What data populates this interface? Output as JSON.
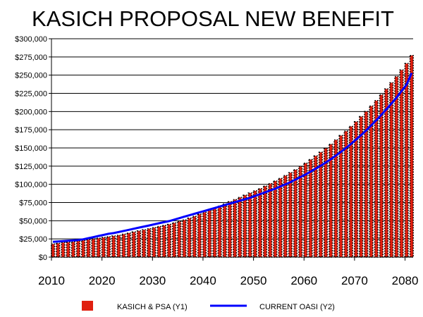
{
  "chart_data": {
    "type": "bar",
    "title": "KASICH PROPOSAL NEW BENEFIT",
    "xlabel": "",
    "ylabel": "",
    "ylim": [
      0,
      300000
    ],
    "xlim": [
      2010,
      2081
    ],
    "y_ticks": [
      "$0",
      "$25,000",
      "$50,000",
      "$75,000",
      "$100,000",
      "$125,000",
      "$150,000",
      "$175,000",
      "$200,000",
      "$225,000",
      "$250,000",
      "$275,000",
      "$300,000"
    ],
    "x_ticks": [
      "2010",
      "2020",
      "2030",
      "2040",
      "2050",
      "2060",
      "2070",
      "2080"
    ],
    "grid": true,
    "legend_position": "bottom",
    "colors": {
      "bars": "#e02010",
      "bar_dots": "#000000",
      "line": "#0000ff",
      "grid": "#000000"
    },
    "x": [
      2010,
      2011,
      2012,
      2013,
      2014,
      2015,
      2016,
      2017,
      2018,
      2019,
      2020,
      2021,
      2022,
      2023,
      2024,
      2025,
      2026,
      2027,
      2028,
      2029,
      2030,
      2031,
      2032,
      2033,
      2034,
      2035,
      2036,
      2037,
      2038,
      2039,
      2040,
      2041,
      2042,
      2043,
      2044,
      2045,
      2046,
      2047,
      2048,
      2049,
      2050,
      2051,
      2052,
      2053,
      2054,
      2055,
      2056,
      2057,
      2058,
      2059,
      2060,
      2061,
      2062,
      2063,
      2064,
      2065,
      2066,
      2067,
      2068,
      2069,
      2070,
      2071,
      2072,
      2073,
      2074,
      2075,
      2076,
      2077,
      2078,
      2079,
      2080,
      2081
    ],
    "series": [
      {
        "name": "KASICH & PSA (Y1)",
        "type": "bar",
        "values": [
          18000,
          19000,
          20000,
          20500,
          21000,
          22000,
          23000,
          24000,
          25000,
          26000,
          27000,
          28000,
          29000,
          30000,
          31500,
          33000,
          34500,
          36000,
          37500,
          39000,
          40500,
          42000,
          43500,
          45000,
          47000,
          49000,
          51000,
          53500,
          56000,
          59000,
          61500,
          64000,
          67000,
          70000,
          73000,
          76000,
          79000,
          82000,
          85000,
          88000,
          91000,
          94000,
          97500,
          101000,
          104500,
          108000,
          112000,
          116000,
          120000,
          124500,
          129000,
          134000,
          139000,
          144000,
          149500,
          155000,
          161000,
          167000,
          173000,
          179500,
          186000,
          193000,
          200000,
          207500,
          215000,
          223000,
          231000,
          239500,
          248000,
          257000,
          266000,
          277000
        ]
      },
      {
        "name": "CURRENT OASI (Y2)",
        "type": "line",
        "values": [
          21000,
          21500,
          22000,
          22500,
          23000,
          23500,
          24500,
          26000,
          27500,
          29000,
          30500,
          32000,
          33000,
          34500,
          36000,
          37500,
          39000,
          40500,
          42000,
          43500,
          45000,
          46500,
          48000,
          49500,
          51500,
          53500,
          55500,
          57500,
          59500,
          61500,
          63500,
          65500,
          67500,
          69500,
          71500,
          73500,
          75500,
          77500,
          79500,
          81500,
          84000,
          86500,
          89000,
          91500,
          94000,
          97000,
          100000,
          103000,
          106500,
          110000,
          113500,
          117500,
          121500,
          125500,
          130000,
          134500,
          139500,
          144500,
          150000,
          155500,
          161500,
          167500,
          174000,
          181000,
          188000,
          195500,
          203000,
          211000,
          219000,
          228000,
          237000,
          253000
        ]
      }
    ]
  }
}
